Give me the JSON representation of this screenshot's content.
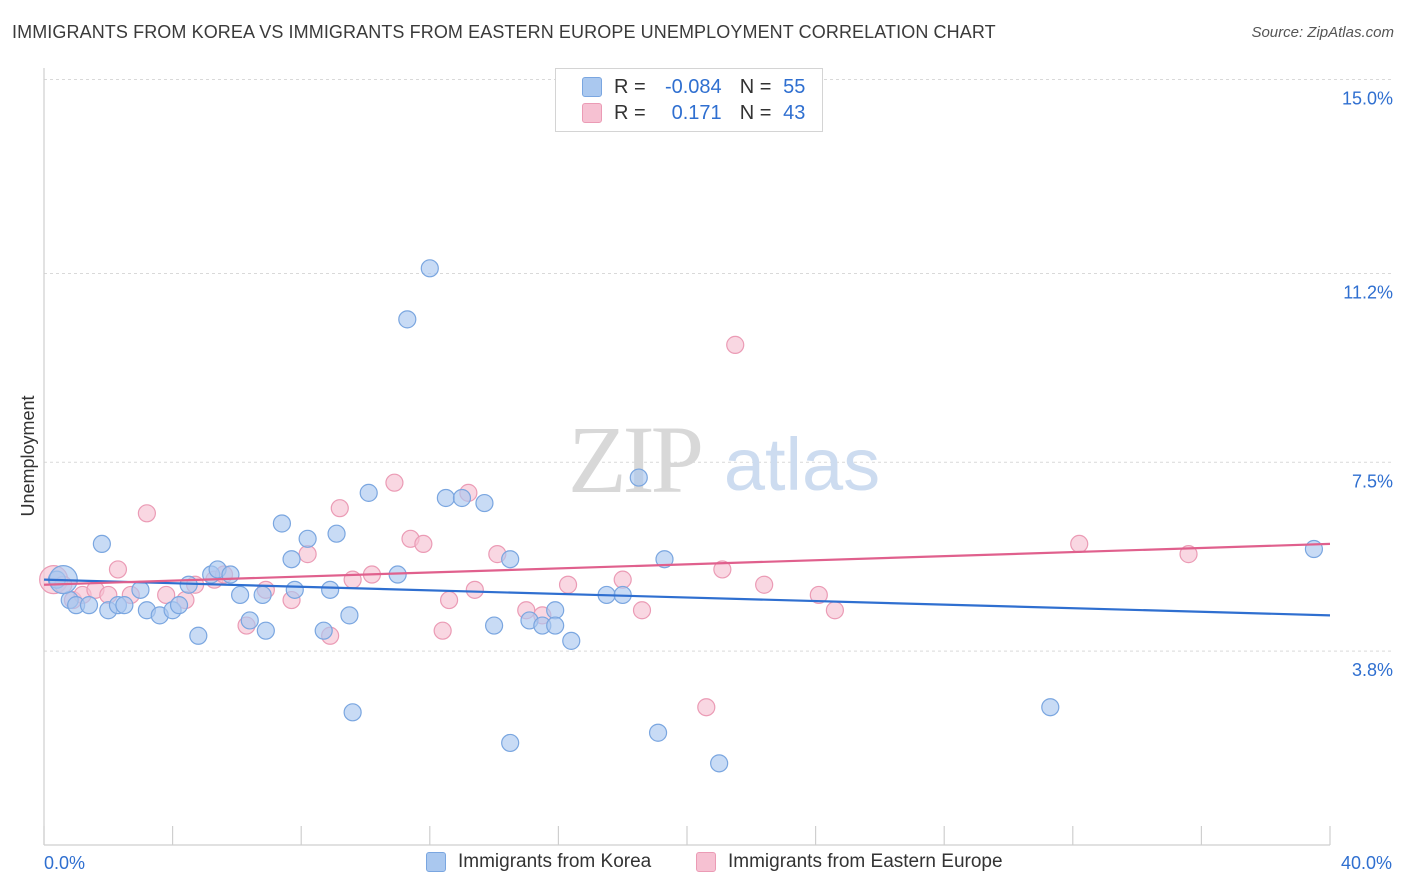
{
  "header": {
    "title": "IMMIGRANTS FROM KOREA VS IMMIGRANTS FROM EASTERN EUROPE UNEMPLOYMENT CORRELATION CHART",
    "source": "Source: ZipAtlas.com"
  },
  "watermark": {
    "zip": "ZIP",
    "atlas": "atlas"
  },
  "legend": {
    "rows": [
      {
        "r_label": "R =",
        "r_value": "-0.084",
        "n_label": "N =",
        "n_value": "55"
      },
      {
        "r_label": "R =",
        "r_value": "0.171",
        "n_label": "N =",
        "n_value": "43"
      }
    ]
  },
  "colors": {
    "korea_fill": "#aac8ef",
    "korea_stroke": "#7aa6e0",
    "korea_line": "#2f6fd0",
    "ee_fill": "#f6c1d2",
    "ee_stroke": "#eb9bb5",
    "ee_line": "#e0608d",
    "tick_label": "#2f6fd0",
    "grid": "#d9d9d9"
  },
  "chart_data": {
    "type": "scatter",
    "title": "IMMIGRANTS FROM KOREA VS IMMIGRANTS FROM EASTERN EUROPE UNEMPLOYMENT CORRELATION CHART",
    "xlabel": "",
    "ylabel": "Unemployment",
    "xlim": [
      0,
      40
    ],
    "ylim": [
      0,
      15.5
    ],
    "x_tick_labels": [
      "0.0%",
      "40.0%"
    ],
    "y_ticks": [
      3.8,
      7.5,
      11.2,
      15.0
    ],
    "y_tick_labels": [
      "3.8%",
      "7.5%",
      "11.2%",
      "15.0%"
    ],
    "series": [
      {
        "name": "Immigrants from Korea",
        "r": -0.084,
        "n": 55,
        "trend": {
          "x": [
            0,
            40
          ],
          "y": [
            5.2,
            4.5
          ]
        },
        "points": [
          [
            0.4,
            5.2
          ],
          [
            0.8,
            4.8
          ],
          [
            1.0,
            4.7
          ],
          [
            1.4,
            4.7
          ],
          [
            1.8,
            5.9
          ],
          [
            2.0,
            4.6
          ],
          [
            2.3,
            4.7
          ],
          [
            2.5,
            4.7
          ],
          [
            3.0,
            5.0
          ],
          [
            3.2,
            4.6
          ],
          [
            3.6,
            4.5
          ],
          [
            4.0,
            4.6
          ],
          [
            4.2,
            4.7
          ],
          [
            4.5,
            5.1
          ],
          [
            4.8,
            4.1
          ],
          [
            5.2,
            5.3
          ],
          [
            5.4,
            5.4
          ],
          [
            5.8,
            5.3
          ],
          [
            6.1,
            4.9
          ],
          [
            6.4,
            4.4
          ],
          [
            6.8,
            4.9
          ],
          [
            6.9,
            4.2
          ],
          [
            7.4,
            6.3
          ],
          [
            7.7,
            5.6
          ],
          [
            7.8,
            5.0
          ],
          [
            8.2,
            6.0
          ],
          [
            8.7,
            4.2
          ],
          [
            8.9,
            5.0
          ],
          [
            9.1,
            6.1
          ],
          [
            9.5,
            4.5
          ],
          [
            9.6,
            2.6
          ],
          [
            10.1,
            6.9
          ],
          [
            11.0,
            5.3
          ],
          [
            11.3,
            10.3
          ],
          [
            12.0,
            11.3
          ],
          [
            12.5,
            6.8
          ],
          [
            13.0,
            6.8
          ],
          [
            13.7,
            6.7
          ],
          [
            14.0,
            4.3
          ],
          [
            14.5,
            2.0
          ],
          [
            14.5,
            5.6
          ],
          [
            15.1,
            4.4
          ],
          [
            15.5,
            4.3
          ],
          [
            15.9,
            4.6
          ],
          [
            15.9,
            4.3
          ],
          [
            16.4,
            4.0
          ],
          [
            17.5,
            4.9
          ],
          [
            18.0,
            4.9
          ],
          [
            18.5,
            7.2
          ],
          [
            19.1,
            2.2
          ],
          [
            19.3,
            5.6
          ],
          [
            21.0,
            1.6
          ],
          [
            31.3,
            2.7
          ],
          [
            39.5,
            5.8
          ],
          [
            0.6,
            5.2
          ]
        ]
      },
      {
        "name": "Immigrants from Eastern Europe",
        "r": 0.171,
        "n": 43,
        "trend": {
          "x": [
            0,
            40
          ],
          "y": [
            5.1,
            5.9
          ]
        },
        "points": [
          [
            0.3,
            5.2
          ],
          [
            0.6,
            5.1
          ],
          [
            0.9,
            4.8
          ],
          [
            1.2,
            4.9
          ],
          [
            1.6,
            5.0
          ],
          [
            2.0,
            4.9
          ],
          [
            2.3,
            5.4
          ],
          [
            2.7,
            4.9
          ],
          [
            3.2,
            6.5
          ],
          [
            3.8,
            4.9
          ],
          [
            4.4,
            4.8
          ],
          [
            4.7,
            5.1
          ],
          [
            5.3,
            5.2
          ],
          [
            5.6,
            5.3
          ],
          [
            6.3,
            4.3
          ],
          [
            6.9,
            5.0
          ],
          [
            7.7,
            4.8
          ],
          [
            8.2,
            5.7
          ],
          [
            8.9,
            4.1
          ],
          [
            9.2,
            6.6
          ],
          [
            9.6,
            5.2
          ],
          [
            10.2,
            5.3
          ],
          [
            10.9,
            7.1
          ],
          [
            11.4,
            6.0
          ],
          [
            11.8,
            5.9
          ],
          [
            12.4,
            4.2
          ],
          [
            12.6,
            4.8
          ],
          [
            13.2,
            6.9
          ],
          [
            13.4,
            5.0
          ],
          [
            14.1,
            5.7
          ],
          [
            15.0,
            4.6
          ],
          [
            15.5,
            4.5
          ],
          [
            16.3,
            5.1
          ],
          [
            18.0,
            5.2
          ],
          [
            18.6,
            4.6
          ],
          [
            20.6,
            2.7
          ],
          [
            21.1,
            5.4
          ],
          [
            21.5,
            9.8
          ],
          [
            22.4,
            5.1
          ],
          [
            24.1,
            4.9
          ],
          [
            24.6,
            4.6
          ],
          [
            32.2,
            5.9
          ],
          [
            35.6,
            5.7
          ]
        ]
      }
    ],
    "bottom_legend": [
      "Immigrants from Korea",
      "Immigrants from Eastern Europe"
    ]
  }
}
